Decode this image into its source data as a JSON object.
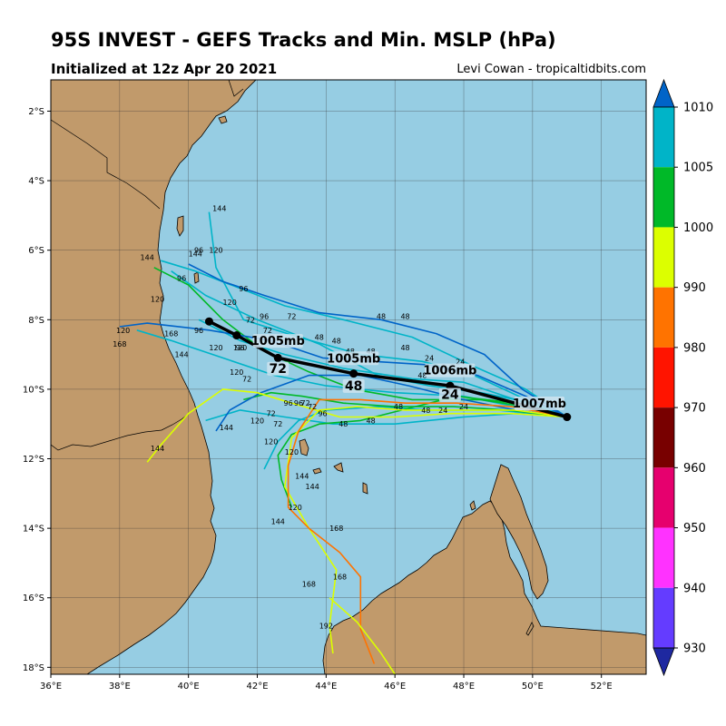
{
  "header": {
    "title": "95S INVEST - GEFS Tracks and Min. MSLP (hPa)",
    "subtitle": "Initialized at 12z Apr 20 2021",
    "credit": "Levi Cowan - tropicaltidbits.com"
  },
  "map": {
    "lon_range": [
      36,
      53.3
    ],
    "lat_range": [
      -18.2,
      -1.1
    ],
    "lon_ticks": [
      {
        "value": 36,
        "label": "36°E"
      },
      {
        "value": 38,
        "label": "38°E"
      },
      {
        "value": 40,
        "label": "40°E"
      },
      {
        "value": 42,
        "label": "42°E"
      },
      {
        "value": 44,
        "label": "44°E"
      },
      {
        "value": 46,
        "label": "46°E"
      },
      {
        "value": 48,
        "label": "48°E"
      },
      {
        "value": 50,
        "label": "50°E"
      },
      {
        "value": 52,
        "label": "52°E"
      }
    ],
    "lat_ticks": [
      {
        "value": -2,
        "label": "2°S"
      },
      {
        "value": -4,
        "label": "4°S"
      },
      {
        "value": -6,
        "label": "6°S"
      },
      {
        "value": -8,
        "label": "8°S"
      },
      {
        "value": -10,
        "label": "10°S"
      },
      {
        "value": -12,
        "label": "12°S"
      },
      {
        "value": -14,
        "label": "14°S"
      },
      {
        "value": -16,
        "label": "16°S"
      },
      {
        "value": -18,
        "label": "18°S"
      }
    ],
    "colors": {
      "ocean": "#96cde3",
      "land": "#c19a6b",
      "grid": "#333333",
      "mean_track": "#000000"
    }
  },
  "colorbar": {
    "ticks": [
      "1010",
      "1005",
      "1000",
      "990",
      "980",
      "970",
      "960",
      "950",
      "940",
      "930"
    ],
    "bins": [
      {
        "label": "1005-1010",
        "color": "#00b4c8"
      },
      {
        "label": "1000-1005",
        "color": "#00b928"
      },
      {
        "label": "990-1000",
        "color": "#dcff00"
      },
      {
        "label": "980-990",
        "color": "#ff7300"
      },
      {
        "label": "970-980",
        "color": "#ff1400"
      },
      {
        "label": "960-970",
        "color": "#780000"
      },
      {
        "label": "950-960",
        "color": "#e6006e"
      },
      {
        "label": "940-950",
        "color": "#ff32ff"
      },
      {
        "label": "930-940",
        "color": "#643cff"
      }
    ],
    "top_extend_color": "#0064c8",
    "bottom_extend_color": "#1e28a0"
  },
  "chart_data": {
    "type": "map",
    "mean_track": [
      {
        "lon": 51.0,
        "lat": -10.8,
        "hour": 0
      },
      {
        "lon": 47.6,
        "lat": -9.9,
        "hour": 24
      },
      {
        "lon": 44.8,
        "lat": -9.55,
        "hour": 48
      },
      {
        "lon": 42.6,
        "lat": -9.1,
        "hour": 72
      },
      {
        "lon": 41.4,
        "lat": -8.45,
        "hour": 96
      },
      {
        "lon": 40.6,
        "lat": -8.05,
        "hour": 120
      }
    ],
    "mslp_labels": [
      {
        "text": "1007mb",
        "lon": 50.2,
        "lat": -10.5
      },
      {
        "text": "1006mb",
        "lon": 47.6,
        "lat": -9.55
      },
      {
        "text": "1005mb",
        "lon": 44.8,
        "lat": -9.2
      },
      {
        "text": "1005mb",
        "lon": 42.6,
        "lat": -8.7
      }
    ],
    "hour_labels": [
      {
        "text": "24",
        "lon": 47.6,
        "lat": -10.25
      },
      {
        "text": "48",
        "lon": 44.8,
        "lat": -10.0
      },
      {
        "text": "72",
        "lon": 42.6,
        "lat": -9.5
      }
    ],
    "member_tracks": [
      {
        "color": "#00b4c8",
        "points": [
          [
            51.0,
            -10.8
          ],
          [
            49.5,
            -10.3
          ],
          [
            48.0,
            -9.8
          ],
          [
            46.5,
            -9.7
          ],
          [
            44.5,
            -9.4
          ],
          [
            42.8,
            -9.0
          ],
          [
            41.5,
            -8.6
          ],
          [
            40.3,
            -8.0
          ]
        ]
      },
      {
        "color": "#00b4c8",
        "points": [
          [
            51.0,
            -10.8
          ],
          [
            49.5,
            -10.5
          ],
          [
            48.0,
            -10.2
          ],
          [
            46.0,
            -10.1
          ],
          [
            44.0,
            -9.9
          ],
          [
            42.5,
            -9.6
          ],
          [
            41.0,
            -9.1
          ],
          [
            39.5,
            -8.6
          ],
          [
            38.5,
            -8.3
          ]
        ]
      },
      {
        "color": "#00b4c8",
        "points": [
          [
            51.0,
            -10.8
          ],
          [
            49.8,
            -10.0
          ],
          [
            48.2,
            -9.3
          ],
          [
            46.5,
            -8.5
          ],
          [
            44.5,
            -8.0
          ],
          [
            42.8,
            -7.6
          ],
          [
            41.5,
            -7.1
          ],
          [
            40.2,
            -6.6
          ],
          [
            39.2,
            -6.3
          ]
        ]
      },
      {
        "color": "#00b4c8",
        "points": [
          [
            51.0,
            -10.8
          ],
          [
            49.0,
            -10.6
          ],
          [
            47.0,
            -10.6
          ],
          [
            45.5,
            -10.5
          ],
          [
            44.0,
            -10.6
          ],
          [
            43.2,
            -10.9
          ],
          [
            42.6,
            -11.5
          ],
          [
            42.2,
            -12.3
          ]
        ]
      },
      {
        "color": "#00b4c8",
        "points": [
          [
            51.0,
            -10.8
          ],
          [
            49.5,
            -10.7
          ],
          [
            48.0,
            -10.8
          ],
          [
            46.0,
            -11.0
          ],
          [
            44.2,
            -11.0
          ],
          [
            42.8,
            -10.8
          ],
          [
            41.5,
            -10.6
          ],
          [
            40.5,
            -10.9
          ]
        ]
      },
      {
        "color": "#00b4c8",
        "points": [
          [
            51.0,
            -10.8
          ],
          [
            50.0,
            -10.4
          ],
          [
            48.5,
            -10.1
          ],
          [
            47.0,
            -9.9
          ],
          [
            45.5,
            -9.6
          ],
          [
            43.8,
            -8.7
          ],
          [
            42.0,
            -8.0
          ],
          [
            40.5,
            -7.3
          ],
          [
            39.5,
            -6.6
          ]
        ]
      },
      {
        "color": "#00b4c8",
        "points": [
          [
            51.0,
            -10.8
          ],
          [
            49.6,
            -10.2
          ],
          [
            48.3,
            -9.6
          ],
          [
            46.8,
            -9.2
          ],
          [
            45.0,
            -9.0
          ],
          [
            43.2,
            -8.5
          ],
          [
            41.6,
            -8.0
          ],
          [
            40.8,
            -6.5
          ],
          [
            40.6,
            -4.9
          ]
        ]
      },
      {
        "color": "#00b928",
        "points": [
          [
            51.0,
            -10.8
          ],
          [
            49.3,
            -10.6
          ],
          [
            47.7,
            -10.5
          ],
          [
            46.0,
            -10.5
          ],
          [
            44.5,
            -10.4
          ],
          [
            43.3,
            -10.2
          ],
          [
            42.4,
            -10.1
          ],
          [
            41.6,
            -10.3
          ]
        ]
      },
      {
        "color": "#00b928",
        "points": [
          [
            51.0,
            -10.8
          ],
          [
            49.8,
            -10.5
          ],
          [
            48.5,
            -10.3
          ],
          [
            46.5,
            -10.3
          ],
          [
            44.8,
            -10.0
          ],
          [
            43.5,
            -9.5
          ],
          [
            42.2,
            -8.9
          ],
          [
            41.0,
            -8.0
          ],
          [
            40.0,
            -7.0
          ],
          [
            39.0,
            -6.5
          ]
        ]
      },
      {
        "color": "#00b928",
        "points": [
          [
            51.0,
            -10.8
          ],
          [
            49.5,
            -10.4
          ],
          [
            47.8,
            -10.2
          ],
          [
            46.2,
            -10.6
          ],
          [
            45.0,
            -10.9
          ],
          [
            43.8,
            -11.0
          ],
          [
            43.0,
            -11.3
          ],
          [
            42.6,
            -11.9
          ],
          [
            42.7,
            -12.6
          ],
          [
            43.0,
            -13.4
          ]
        ]
      },
      {
        "color": "#0064c8",
        "points": [
          [
            51.0,
            -10.8
          ],
          [
            49.7,
            -10.0
          ],
          [
            48.6,
            -9.0
          ],
          [
            47.2,
            -8.4
          ],
          [
            45.6,
            -8.0
          ],
          [
            43.8,
            -7.8
          ],
          [
            42.2,
            -7.3
          ],
          [
            41.0,
            -6.9
          ],
          [
            40.0,
            -6.4
          ]
        ]
      },
      {
        "color": "#0064c8",
        "points": [
          [
            51.0,
            -10.8
          ],
          [
            49.5,
            -10.6
          ],
          [
            48.0,
            -10.3
          ],
          [
            46.4,
            -9.9
          ],
          [
            45.0,
            -9.6
          ],
          [
            43.5,
            -9.6
          ],
          [
            42.1,
            -10.1
          ],
          [
            41.2,
            -10.6
          ],
          [
            40.8,
            -11.2
          ]
        ]
      },
      {
        "color": "#0064c8",
        "points": [
          [
            51.0,
            -10.8
          ],
          [
            49.8,
            -10.2
          ],
          [
            48.4,
            -9.6
          ],
          [
            47.0,
            -9.3
          ],
          [
            45.4,
            -9.2
          ],
          [
            43.9,
            -9.1
          ],
          [
            42.4,
            -8.6
          ],
          [
            40.6,
            -8.3
          ],
          [
            38.8,
            -8.1
          ],
          [
            38.0,
            -8.2
          ]
        ]
      },
      {
        "color": "#dcff00",
        "points": [
          [
            51.0,
            -10.8
          ],
          [
            49.5,
            -10.6
          ],
          [
            48.0,
            -10.6
          ],
          [
            46.3,
            -10.6
          ],
          [
            44.9,
            -10.5
          ],
          [
            43.8,
            -10.6
          ],
          [
            43.0,
            -11.4
          ],
          [
            42.8,
            -12.8
          ],
          [
            43.5,
            -14.0
          ],
          [
            44.3,
            -15.2
          ],
          [
            44.1,
            -16.8
          ],
          [
            44.2,
            -17.6
          ]
        ]
      },
      {
        "color": "#dcff00",
        "points": [
          [
            51.0,
            -10.8
          ],
          [
            49.4,
            -10.7
          ],
          [
            47.6,
            -10.7
          ],
          [
            46.0,
            -10.8
          ],
          [
            44.4,
            -10.8
          ],
          [
            43.0,
            -10.4
          ],
          [
            42.0,
            -10.1
          ],
          [
            41.0,
            -10.0
          ],
          [
            40.0,
            -10.7
          ],
          [
            39.2,
            -11.6
          ],
          [
            38.8,
            -12.1
          ]
        ]
      },
      {
        "color": "#ff7300",
        "points": [
          [
            51.0,
            -10.8
          ],
          [
            49.4,
            -10.5
          ],
          [
            47.8,
            -10.4
          ],
          [
            46.3,
            -10.4
          ],
          [
            45.0,
            -10.3
          ],
          [
            43.8,
            -10.3
          ],
          [
            43.2,
            -11.2
          ],
          [
            42.9,
            -12.2
          ],
          [
            42.9,
            -13.4
          ],
          [
            43.5,
            -14.0
          ],
          [
            44.4,
            -14.7
          ],
          [
            45.0,
            -15.4
          ],
          [
            45.0,
            -16.9
          ],
          [
            45.4,
            -17.9
          ]
        ]
      },
      {
        "color": "#dcff00",
        "points": [
          [
            44.1,
            -16.0
          ],
          [
            44.9,
            -16.7
          ],
          [
            45.6,
            -17.6
          ],
          [
            46.0,
            -18.2
          ]
        ]
      }
    ],
    "member_hour_labels": [
      {
        "text": "24",
        "lon": 47.0,
        "lat": -9.1
      },
      {
        "text": "24",
        "lon": 47.9,
        "lat": -9.2
      },
      {
        "text": "24",
        "lon": 48.0,
        "lat": -9.5
      },
      {
        "text": "24",
        "lon": 47.5,
        "lat": -10.1
      },
      {
        "text": "24",
        "lon": 48.0,
        "lat": -10.5
      },
      {
        "text": "24",
        "lon": 47.4,
        "lat": -10.6
      },
      {
        "text": "48",
        "lon": 45.6,
        "lat": -7.9
      },
      {
        "text": "48",
        "lon": 46.3,
        "lat": -7.9
      },
      {
        "text": "48",
        "lon": 43.8,
        "lat": -8.5
      },
      {
        "text": "48",
        "lon": 44.3,
        "lat": -8.6
      },
      {
        "text": "48",
        "lon": 44.7,
        "lat": -8.9
      },
      {
        "text": "48",
        "lon": 45.3,
        "lat": -8.9
      },
      {
        "text": "48",
        "lon": 46.3,
        "lat": -8.8
      },
      {
        "text": "48",
        "lon": 46.8,
        "lat": -9.6
      },
      {
        "text": "48",
        "lon": 46.1,
        "lat": -10.5
      },
      {
        "text": "48",
        "lon": 46.9,
        "lat": -10.6
      },
      {
        "text": "48",
        "lon": 45.3,
        "lat": -10.9
      },
      {
        "text": "48",
        "lon": 44.5,
        "lat": -11.0
      },
      {
        "text": "72",
        "lon": 43.0,
        "lat": -7.9
      },
      {
        "text": "72",
        "lon": 42.3,
        "lat": -8.3
      },
      {
        "text": "72",
        "lon": 41.8,
        "lat": -8.0
      },
      {
        "text": "72",
        "lon": 41.7,
        "lat": -9.7
      },
      {
        "text": "72",
        "lon": 43.4,
        "lat": -10.4
      },
      {
        "text": "72",
        "lon": 43.6,
        "lat": -10.5
      },
      {
        "text": "72",
        "lon": 42.4,
        "lat": -10.7
      },
      {
        "text": "72",
        "lon": 42.6,
        "lat": -11.0
      },
      {
        "text": "96",
        "lon": 41.6,
        "lat": -7.1
      },
      {
        "text": "96",
        "lon": 42.2,
        "lat": -7.9
      },
      {
        "text": "96",
        "lon": 41.5,
        "lat": -8.8
      },
      {
        "text": "96",
        "lon": 42.9,
        "lat": -10.4
      },
      {
        "text": "96",
        "lon": 43.2,
        "lat": -10.4
      },
      {
        "text": "96",
        "lon": 43.9,
        "lat": -10.7
      },
      {
        "text": "96",
        "lon": 40.3,
        "lat": -6.0
      },
      {
        "text": "96",
        "lon": 39.8,
        "lat": -6.8
      },
      {
        "text": "96",
        "lon": 40.3,
        "lat": -8.3
      },
      {
        "text": "120",
        "lon": 40.8,
        "lat": -6.0
      },
      {
        "text": "120",
        "lon": 41.2,
        "lat": -7.5
      },
      {
        "text": "120",
        "lon": 40.8,
        "lat": -8.8
      },
      {
        "text": "120",
        "lon": 41.5,
        "lat": -8.8
      },
      {
        "text": "120",
        "lon": 39.1,
        "lat": -7.4
      },
      {
        "text": "120",
        "lon": 41.4,
        "lat": -9.5
      },
      {
        "text": "120",
        "lon": 42.0,
        "lat": -10.9
      },
      {
        "text": "120",
        "lon": 42.4,
        "lat": -11.5
      },
      {
        "text": "120",
        "lon": 43.0,
        "lat": -11.8
      },
      {
        "text": "120",
        "lon": 43.1,
        "lat": -13.4
      },
      {
        "text": "120",
        "lon": 38.1,
        "lat": -8.3
      },
      {
        "text": "144",
        "lon": 40.9,
        "lat": -4.8
      },
      {
        "text": "144",
        "lon": 38.8,
        "lat": -6.2
      },
      {
        "text": "144",
        "lon": 40.2,
        "lat": -6.1
      },
      {
        "text": "144",
        "lon": 39.8,
        "lat": -9.0
      },
      {
        "text": "144",
        "lon": 41.1,
        "lat": -11.1
      },
      {
        "text": "144",
        "lon": 39.1,
        "lat": -11.7
      },
      {
        "text": "144",
        "lon": 43.3,
        "lat": -12.5
      },
      {
        "text": "144",
        "lon": 43.6,
        "lat": -12.8
      },
      {
        "text": "144",
        "lon": 42.6,
        "lat": -13.8
      },
      {
        "text": "168",
        "lon": 44.3,
        "lat": -14.0
      },
      {
        "text": "168",
        "lon": 44.4,
        "lat": -15.4
      },
      {
        "text": "168",
        "lon": 43.5,
        "lat": -15.6
      },
      {
        "text": "168",
        "lon": 38.0,
        "lat": -8.7
      },
      {
        "text": "168",
        "lon": 39.5,
        "lat": -8.4
      },
      {
        "text": "192",
        "lon": 44.0,
        "lat": -16.8
      },
      {
        "text": "192",
        "lon": 45.8,
        "lat": -18.3
      }
    ]
  }
}
